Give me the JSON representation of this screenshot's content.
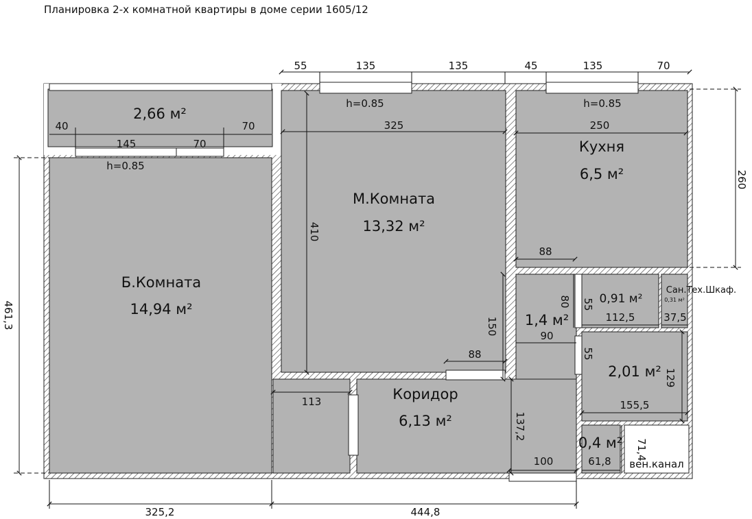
{
  "title": "Планировка 2-х комнатной квартиры в доме серии 1605/12",
  "rooms": {
    "balcony": {
      "area": "2,66 м²"
    },
    "big_room": {
      "name": "Б.Комната",
      "area": "14,94 м²"
    },
    "small_room": {
      "name": "М.Комната",
      "area": "13,32 м²"
    },
    "kitchen": {
      "name": "Кухня",
      "area": "6,5 м²"
    },
    "corridor": {
      "name": "Коридор",
      "area": "6,13 м²"
    },
    "toilet": {
      "area": "1,4 м²"
    },
    "closet_small": {
      "area": "0,91 м²"
    },
    "bath": {
      "area": "2,01 м²"
    },
    "closet_04": {
      "area": "0,4 м²"
    },
    "san_tech": {
      "name": "Сан.Тех.Шкаф.",
      "area": "0,31 м²"
    },
    "vent": {
      "name": "вен.канал"
    }
  },
  "windows": {
    "h1": "h=0.85",
    "h2": "h=0.85",
    "h3": "h=0.85"
  },
  "dimensions": {
    "top_55": "55",
    "top_135a": "135",
    "top_135b": "135",
    "top_45": "45",
    "top_135c": "135",
    "top_70": "70",
    "bal_40": "40",
    "bal_70": "70",
    "bal_145": "145",
    "bal_70b": "70",
    "m_325": "325",
    "k_250": "250",
    "m_410": "410",
    "right_260": "260",
    "left_461": "461,3",
    "d88a": "88",
    "d80": "80",
    "d55a": "55",
    "d112": "112,5",
    "d37": "37,5",
    "d150": "150",
    "d90": "90",
    "d88b": "88",
    "d55b": "55",
    "d129": "129",
    "d155": "155,5",
    "d113": "113",
    "d137": "137,2",
    "d71": "71,4",
    "d100": "100",
    "d61": "61,8",
    "bottom_325": "325,2",
    "bottom_444": "444,8"
  },
  "colors": {
    "floor": "#b3b3b3",
    "wall": "#ffffff",
    "line": "#222222"
  }
}
